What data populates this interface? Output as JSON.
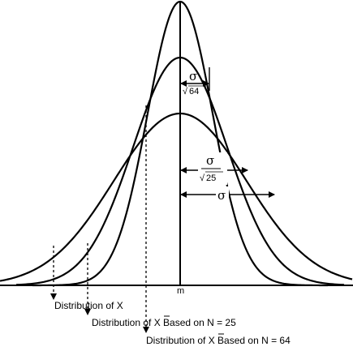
{
  "axis": {
    "mean_label": "m"
  },
  "brackets": {
    "n64": {
      "numerator": "σ",
      "denominator": "64"
    },
    "n25": {
      "numerator": "σ",
      "denominator": "25"
    },
    "population": {
      "symbol": "σ"
    }
  },
  "labels": {
    "dist_x": "Distribution of X",
    "dist_n25_prefix": "Distribution of ",
    "dist_n25_var": "X",
    "dist_n25_suffix": " Based on N = 25",
    "dist_n64_prefix": "Distribution of ",
    "dist_n64_var": "X",
    "dist_n64_suffix": " Based on N = 64"
  }
}
